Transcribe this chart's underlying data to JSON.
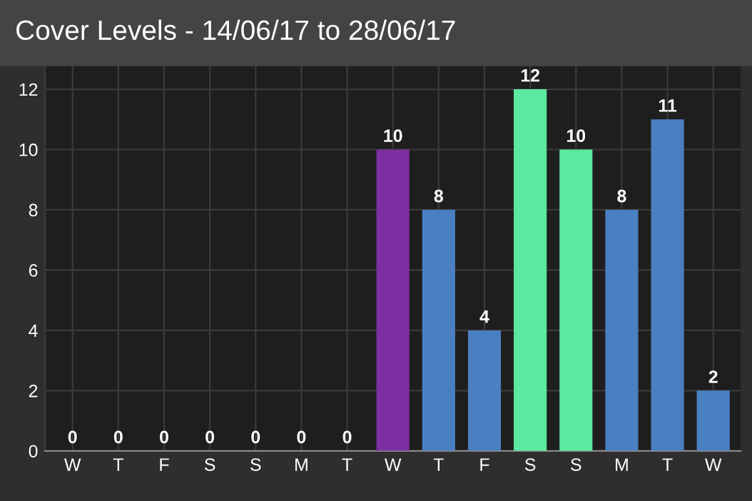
{
  "chart_data": {
    "type": "bar",
    "title": "Cover Levels - 14/06/17 to 28/06/17",
    "categories": [
      "W",
      "T",
      "F",
      "S",
      "S",
      "M",
      "T",
      "W",
      "T",
      "F",
      "S",
      "S",
      "M",
      "T",
      "W"
    ],
    "values": [
      0,
      0,
      0,
      0,
      0,
      0,
      0,
      10,
      8,
      4,
      12,
      10,
      8,
      11,
      2
    ],
    "colors": [
      "#4a7fc1",
      "#4a7fc1",
      "#4a7fc1",
      "#4a7fc1",
      "#4a7fc1",
      "#4a7fc1",
      "#4a7fc1",
      "#7b2fa0",
      "#4a7fc1",
      "#4a7fc1",
      "#5ce8a0",
      "#5ce8a0",
      "#4a7fc1",
      "#4a7fc1",
      "#4a7fc1"
    ],
    "ylim": [
      0,
      12.8
    ],
    "yticks": [
      0,
      2,
      4,
      6,
      8,
      10,
      12
    ],
    "grid": true,
    "data_labels": true
  }
}
